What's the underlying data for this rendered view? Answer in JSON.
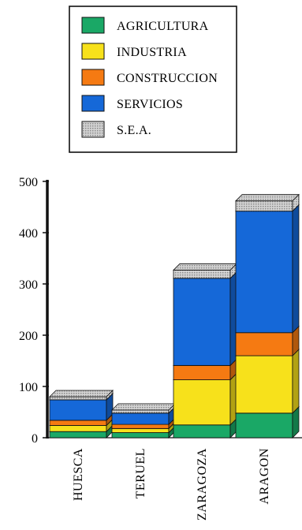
{
  "chart_data": {
    "type": "bar",
    "stacked": true,
    "style": "3d",
    "categories": [
      "HUESCA",
      "TERUEL",
      "ZARAGOZA",
      "ARAGON"
    ],
    "series": [
      {
        "name": "AGRICULTURA",
        "color": "#1aa866",
        "values": [
          12,
          10,
          25,
          48
        ]
      },
      {
        "name": "INDUSTRIA",
        "color": "#f7e11b",
        "values": [
          12,
          8,
          88,
          112
        ]
      },
      {
        "name": "CONSTRUCCION",
        "color": "#f57a12",
        "values": [
          10,
          8,
          28,
          45
        ]
      },
      {
        "name": "SERVICIOS",
        "color": "#1568d8",
        "values": [
          40,
          22,
          170,
          237
        ]
      },
      {
        "name": "S.E.A.",
        "color": "#c8c8c8",
        "pattern": "dotted",
        "values": [
          6,
          6,
          16,
          20
        ]
      }
    ],
    "ylim": [
      0,
      500
    ],
    "yticks": [
      "0",
      "100",
      "200",
      "300",
      "400",
      "500"
    ],
    "legend_position": "top",
    "grid": false,
    "title": "",
    "xlabel": "",
    "ylabel": ""
  }
}
